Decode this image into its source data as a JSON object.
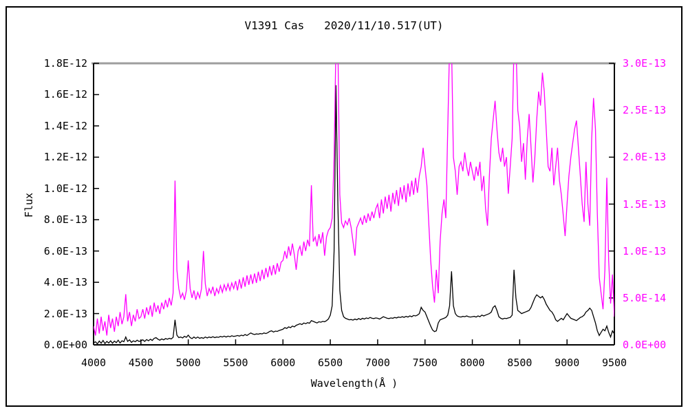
{
  "window": {
    "background": "#ffffff",
    "border_color": "#000000"
  },
  "chart_data": {
    "type": "line",
    "title": "V1391 Cas   2020/11/10.517(UT)",
    "xlabel": "Wavelength(Å )",
    "ylabel_left": "Flux",
    "grid": false,
    "legend": "none",
    "frame_top_color": "#9e9e9e",
    "x_range": [
      4000,
      9500
    ],
    "x_ticks": {
      "values": [
        4000,
        4500,
        5000,
        5500,
        6000,
        6500,
        7000,
        7500,
        8000,
        8500,
        9000,
        9500
      ],
      "labels": [
        "4000",
        "4500",
        "5000",
        "5500",
        "6000",
        "6500",
        "7000",
        "7500",
        "8000",
        "8500",
        "9000",
        "9500"
      ]
    },
    "y_left": {
      "max": 1.8,
      "unit_scale": "1e-12",
      "color": "#000000",
      "tick_values": [
        0,
        0.2,
        0.4,
        0.6,
        0.8,
        1.0,
        1.2,
        1.4,
        1.6,
        1.8
      ],
      "tick_labels": [
        "0.0E+00",
        "2.0E-13",
        "4.0E-13",
        "6.0E-13",
        "8.0E-13",
        "1.0E-12",
        "1.2E-12",
        "1.4E-12",
        "1.6E-12",
        "1.8E-12"
      ]
    },
    "y_right": {
      "max": 3.0,
      "unit_scale": "1e-13",
      "color": "#ff00ff",
      "tick_values": [
        0,
        0.5,
        1.0,
        1.5,
        2.0,
        2.5,
        3.0
      ],
      "tick_labels": [
        "0.0E+00",
        "5.0E-14",
        "1.0E-13",
        "1.5E-13",
        "2.0E-13",
        "2.5E-13",
        "3.0E-13"
      ]
    },
    "series": [
      {
        "name": "spectrum-black",
        "axis": "left",
        "color": "#000000",
        "unit_scale": "1e-12",
        "x_start": 4000,
        "x_step": 20,
        "values": [
          0.012,
          0.02,
          0.006,
          0.024,
          0.01,
          0.028,
          0.008,
          0.022,
          0.012,
          0.026,
          0.01,
          0.024,
          0.014,
          0.03,
          0.012,
          0.026,
          0.02,
          0.05,
          0.022,
          0.032,
          0.016,
          0.026,
          0.02,
          0.03,
          0.022,
          0.026,
          0.032,
          0.022,
          0.034,
          0.026,
          0.036,
          0.028,
          0.042,
          0.046,
          0.036,
          0.03,
          0.038,
          0.032,
          0.04,
          0.036,
          0.042,
          0.038,
          0.048,
          0.16,
          0.062,
          0.046,
          0.05,
          0.044,
          0.055,
          0.048,
          0.062,
          0.046,
          0.04,
          0.05,
          0.042,
          0.05,
          0.042,
          0.046,
          0.042,
          0.05,
          0.044,
          0.05,
          0.046,
          0.052,
          0.046,
          0.05,
          0.048,
          0.054,
          0.05,
          0.056,
          0.05,
          0.056,
          0.052,
          0.058,
          0.054,
          0.056,
          0.06,
          0.056,
          0.062,
          0.058,
          0.066,
          0.06,
          0.068,
          0.076,
          0.07,
          0.066,
          0.07,
          0.068,
          0.072,
          0.07,
          0.076,
          0.072,
          0.078,
          0.086,
          0.09,
          0.082,
          0.088,
          0.086,
          0.092,
          0.096,
          0.1,
          0.11,
          0.105,
          0.115,
          0.11,
          0.12,
          0.115,
          0.125,
          0.13,
          0.135,
          0.13,
          0.14,
          0.135,
          0.142,
          0.138,
          0.155,
          0.15,
          0.145,
          0.14,
          0.148,
          0.145,
          0.15,
          0.148,
          0.155,
          0.165,
          0.19,
          0.25,
          0.6,
          1.66,
          0.9,
          0.35,
          0.22,
          0.18,
          0.17,
          0.165,
          0.16,
          0.162,
          0.158,
          0.165,
          0.16,
          0.168,
          0.162,
          0.17,
          0.165,
          0.172,
          0.168,
          0.175,
          0.17,
          0.168,
          0.172,
          0.17,
          0.165,
          0.172,
          0.18,
          0.175,
          0.17,
          0.168,
          0.172,
          0.17,
          0.175,
          0.172,
          0.178,
          0.175,
          0.18,
          0.176,
          0.182,
          0.178,
          0.185,
          0.18,
          0.188,
          0.185,
          0.19,
          0.2,
          0.24,
          0.22,
          0.21,
          0.18,
          0.15,
          0.12,
          0.095,
          0.085,
          0.09,
          0.14,
          0.16,
          0.165,
          0.17,
          0.175,
          0.19,
          0.25,
          0.47,
          0.25,
          0.2,
          0.185,
          0.18,
          0.178,
          0.182,
          0.18,
          0.185,
          0.18,
          0.178,
          0.18,
          0.182,
          0.178,
          0.185,
          0.18,
          0.19,
          0.185,
          0.19,
          0.195,
          0.2,
          0.21,
          0.24,
          0.25,
          0.22,
          0.18,
          0.17,
          0.165,
          0.17,
          0.168,
          0.172,
          0.175,
          0.19,
          0.48,
          0.3,
          0.22,
          0.21,
          0.2,
          0.205,
          0.21,
          0.215,
          0.22,
          0.24,
          0.27,
          0.3,
          0.32,
          0.31,
          0.3,
          0.31,
          0.29,
          0.26,
          0.24,
          0.22,
          0.21,
          0.19,
          0.16,
          0.15,
          0.16,
          0.17,
          0.16,
          0.18,
          0.2,
          0.185,
          0.17,
          0.165,
          0.16,
          0.155,
          0.165,
          0.175,
          0.18,
          0.19,
          0.21,
          0.22,
          0.235,
          0.22,
          0.18,
          0.14,
          0.09,
          0.06,
          0.08,
          0.1,
          0.09,
          0.12,
          0.08,
          0.05,
          0.09,
          0.07
        ]
      },
      {
        "name": "spectrum-magenta",
        "axis": "right",
        "color": "#ff00ff",
        "unit_scale": "1e-13",
        "x_start": 4000,
        "x_step": 20,
        "values": [
          0.2,
          0.1,
          0.28,
          0.12,
          0.3,
          0.15,
          0.25,
          0.1,
          0.32,
          0.18,
          0.28,
          0.14,
          0.3,
          0.2,
          0.35,
          0.22,
          0.3,
          0.54,
          0.25,
          0.35,
          0.2,
          0.32,
          0.25,
          0.38,
          0.28,
          0.3,
          0.38,
          0.28,
          0.4,
          0.32,
          0.42,
          0.3,
          0.45,
          0.35,
          0.42,
          0.33,
          0.45,
          0.38,
          0.48,
          0.4,
          0.5,
          0.42,
          0.55,
          1.75,
          0.8,
          0.6,
          0.5,
          0.55,
          0.48,
          0.58,
          0.9,
          0.6,
          0.5,
          0.58,
          0.48,
          0.56,
          0.5,
          0.6,
          1.0,
          0.65,
          0.52,
          0.6,
          0.55,
          0.62,
          0.52,
          0.6,
          0.55,
          0.63,
          0.56,
          0.64,
          0.58,
          0.65,
          0.58,
          0.66,
          0.6,
          0.68,
          0.58,
          0.7,
          0.6,
          0.72,
          0.62,
          0.74,
          0.64,
          0.75,
          0.65,
          0.76,
          0.66,
          0.78,
          0.68,
          0.8,
          0.7,
          0.82,
          0.72,
          0.84,
          0.74,
          0.85,
          0.75,
          0.87,
          0.78,
          0.88,
          0.9,
          1.0,
          0.92,
          1.05,
          0.95,
          1.08,
          0.96,
          0.8,
          1.0,
          1.05,
          0.95,
          1.1,
          1.0,
          1.12,
          1.05,
          1.7,
          1.1,
          1.15,
          1.05,
          1.18,
          1.08,
          1.2,
          0.95,
          1.15,
          1.22,
          1.25,
          1.35,
          2.0,
          3.2,
          3.2,
          1.6,
          1.3,
          1.25,
          1.32,
          1.28,
          1.35,
          1.25,
          1.1,
          0.95,
          1.25,
          1.3,
          1.35,
          1.28,
          1.38,
          1.3,
          1.4,
          1.32,
          1.42,
          1.35,
          1.45,
          1.5,
          1.35,
          1.55,
          1.4,
          1.58,
          1.45,
          1.6,
          1.42,
          1.62,
          1.5,
          1.65,
          1.48,
          1.68,
          1.55,
          1.7,
          1.52,
          1.72,
          1.58,
          1.75,
          1.6,
          1.78,
          1.62,
          1.8,
          1.9,
          2.1,
          1.9,
          1.7,
          1.3,
          0.9,
          0.63,
          0.45,
          0.8,
          0.55,
          1.1,
          1.4,
          1.55,
          1.35,
          2.3,
          3.2,
          3.2,
          2.0,
          1.85,
          1.6,
          1.9,
          1.95,
          1.85,
          2.05,
          1.9,
          1.8,
          1.95,
          1.85,
          1.75,
          1.9,
          1.8,
          1.95,
          1.64,
          1.8,
          1.45,
          1.27,
          1.8,
          2.2,
          2.4,
          2.6,
          2.3,
          2.05,
          1.95,
          2.1,
          1.9,
          2.0,
          1.61,
          1.9,
          2.2,
          3.2,
          3.2,
          2.5,
          2.33,
          1.95,
          2.15,
          1.76,
          2.2,
          2.46,
          2.1,
          1.73,
          2.0,
          2.4,
          2.7,
          2.55,
          2.9,
          2.7,
          2.3,
          1.9,
          1.85,
          2.1,
          1.7,
          1.9,
          2.1,
          1.75,
          1.6,
          1.38,
          1.16,
          1.5,
          1.8,
          2.0,
          2.15,
          2.3,
          2.39,
          2.1,
          1.8,
          1.5,
          1.31,
          1.95,
          1.5,
          1.27,
          2.2,
          2.63,
          2.3,
          1.4,
          0.72,
          0.55,
          0.38,
          0.8,
          1.78,
          0.9,
          0.44,
          0.75,
          0.3
        ]
      }
    ]
  }
}
